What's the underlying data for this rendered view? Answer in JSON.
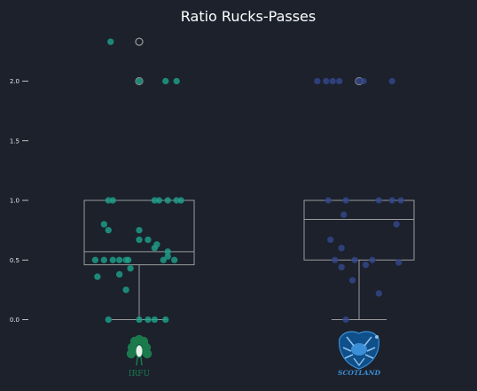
{
  "chart_data": {
    "type": "box-strip",
    "title": "Ratio Rucks-Passes",
    "ylim": [
      -0.1,
      2.5
    ],
    "yticks": [
      {
        "v": 0.0,
        "label": "0.0"
      },
      {
        "v": 0.5,
        "label": "0.5"
      },
      {
        "v": 1.0,
        "label": "1.0"
      },
      {
        "v": 1.5,
        "label": "1.5"
      },
      {
        "v": 2.0,
        "label": "2.0"
      }
    ],
    "grid": false,
    "categories": [
      "IRFU",
      "SCOTLAND"
    ],
    "series": [
      {
        "name": "IRFU",
        "color": "#1fa38c",
        "box": {
          "q1": 0.46,
          "median": 0.57,
          "q3": 1.0,
          "whisker_low": 0.0,
          "whisker_high": 1.0
        },
        "outliers": [
          2.0,
          2.33
        ],
        "points": [
          {
            "dx": -0.13,
            "y": 2.33
          },
          {
            "dx": 0.0,
            "y": 2.0
          },
          {
            "dx": 0.12,
            "y": 2.0
          },
          {
            "dx": 0.17,
            "y": 2.0
          },
          {
            "dx": -0.14,
            "y": 1.0
          },
          {
            "dx": -0.12,
            "y": 1.0
          },
          {
            "dx": 0.07,
            "y": 1.0
          },
          {
            "dx": 0.09,
            "y": 1.0
          },
          {
            "dx": 0.13,
            "y": 1.0
          },
          {
            "dx": 0.17,
            "y": 1.0
          },
          {
            "dx": 0.19,
            "y": 1.0
          },
          {
            "dx": -0.16,
            "y": 0.8
          },
          {
            "dx": -0.14,
            "y": 0.75
          },
          {
            "dx": 0.0,
            "y": 0.75
          },
          {
            "dx": 0.0,
            "y": 0.67
          },
          {
            "dx": 0.04,
            "y": 0.67
          },
          {
            "dx": 0.08,
            "y": 0.63
          },
          {
            "dx": 0.07,
            "y": 0.6
          },
          {
            "dx": 0.13,
            "y": 0.57
          },
          {
            "dx": 0.13,
            "y": 0.53
          },
          {
            "dx": -0.2,
            "y": 0.5
          },
          {
            "dx": -0.16,
            "y": 0.5
          },
          {
            "dx": -0.12,
            "y": 0.5
          },
          {
            "dx": -0.09,
            "y": 0.5
          },
          {
            "dx": -0.06,
            "y": 0.5
          },
          {
            "dx": -0.05,
            "y": 0.5
          },
          {
            "dx": 0.11,
            "y": 0.5
          },
          {
            "dx": 0.16,
            "y": 0.5
          },
          {
            "dx": -0.04,
            "y": 0.43
          },
          {
            "dx": -0.09,
            "y": 0.38
          },
          {
            "dx": -0.19,
            "y": 0.36
          },
          {
            "dx": -0.06,
            "y": 0.25
          },
          {
            "dx": -0.14,
            "y": 0.0
          },
          {
            "dx": 0.0,
            "y": 0.0
          },
          {
            "dx": 0.04,
            "y": 0.0
          },
          {
            "dx": 0.07,
            "y": 0.0
          },
          {
            "dx": 0.12,
            "y": 0.0
          }
        ]
      },
      {
        "name": "SCOTLAND",
        "color": "#34498c",
        "box": {
          "q1": 0.5,
          "median": 0.84,
          "q3": 1.0,
          "whisker_low": 0.0,
          "whisker_high": 1.0
        },
        "outliers": [
          2.0
        ],
        "points": [
          {
            "dx": -0.19,
            "y": 2.0
          },
          {
            "dx": -0.15,
            "y": 2.0
          },
          {
            "dx": -0.12,
            "y": 2.0
          },
          {
            "dx": -0.09,
            "y": 2.0
          },
          {
            "dx": 0.0,
            "y": 2.0
          },
          {
            "dx": 0.02,
            "y": 2.0
          },
          {
            "dx": 0.15,
            "y": 2.0
          },
          {
            "dx": -0.14,
            "y": 1.0
          },
          {
            "dx": -0.06,
            "y": 1.0
          },
          {
            "dx": 0.09,
            "y": 1.0
          },
          {
            "dx": 0.15,
            "y": 1.0
          },
          {
            "dx": 0.19,
            "y": 1.0
          },
          {
            "dx": -0.07,
            "y": 0.88
          },
          {
            "dx": 0.17,
            "y": 0.8
          },
          {
            "dx": -0.13,
            "y": 0.67
          },
          {
            "dx": -0.08,
            "y": 0.6
          },
          {
            "dx": -0.11,
            "y": 0.5
          },
          {
            "dx": -0.02,
            "y": 0.5
          },
          {
            "dx": 0.06,
            "y": 0.5
          },
          {
            "dx": 0.18,
            "y": 0.48
          },
          {
            "dx": 0.03,
            "y": 0.46
          },
          {
            "dx": -0.08,
            "y": 0.44
          },
          {
            "dx": -0.03,
            "y": 0.33
          },
          {
            "dx": 0.09,
            "y": 0.22
          },
          {
            "dx": -0.06,
            "y": 0.0
          }
        ]
      }
    ]
  },
  "colors": {
    "background": "#1c212c",
    "box_line": "#9a9a9a",
    "ireland_logo": "#1a7a4c",
    "scotland_logo": "#1565a6"
  },
  "logos": [
    {
      "team": "IRFU",
      "text": "IRFU",
      "icon": "shamrock-rugby-icon"
    },
    {
      "team": "SCOTLAND",
      "text": "SCOTLAND",
      "icon": "thistle-rugby-icon"
    }
  ]
}
